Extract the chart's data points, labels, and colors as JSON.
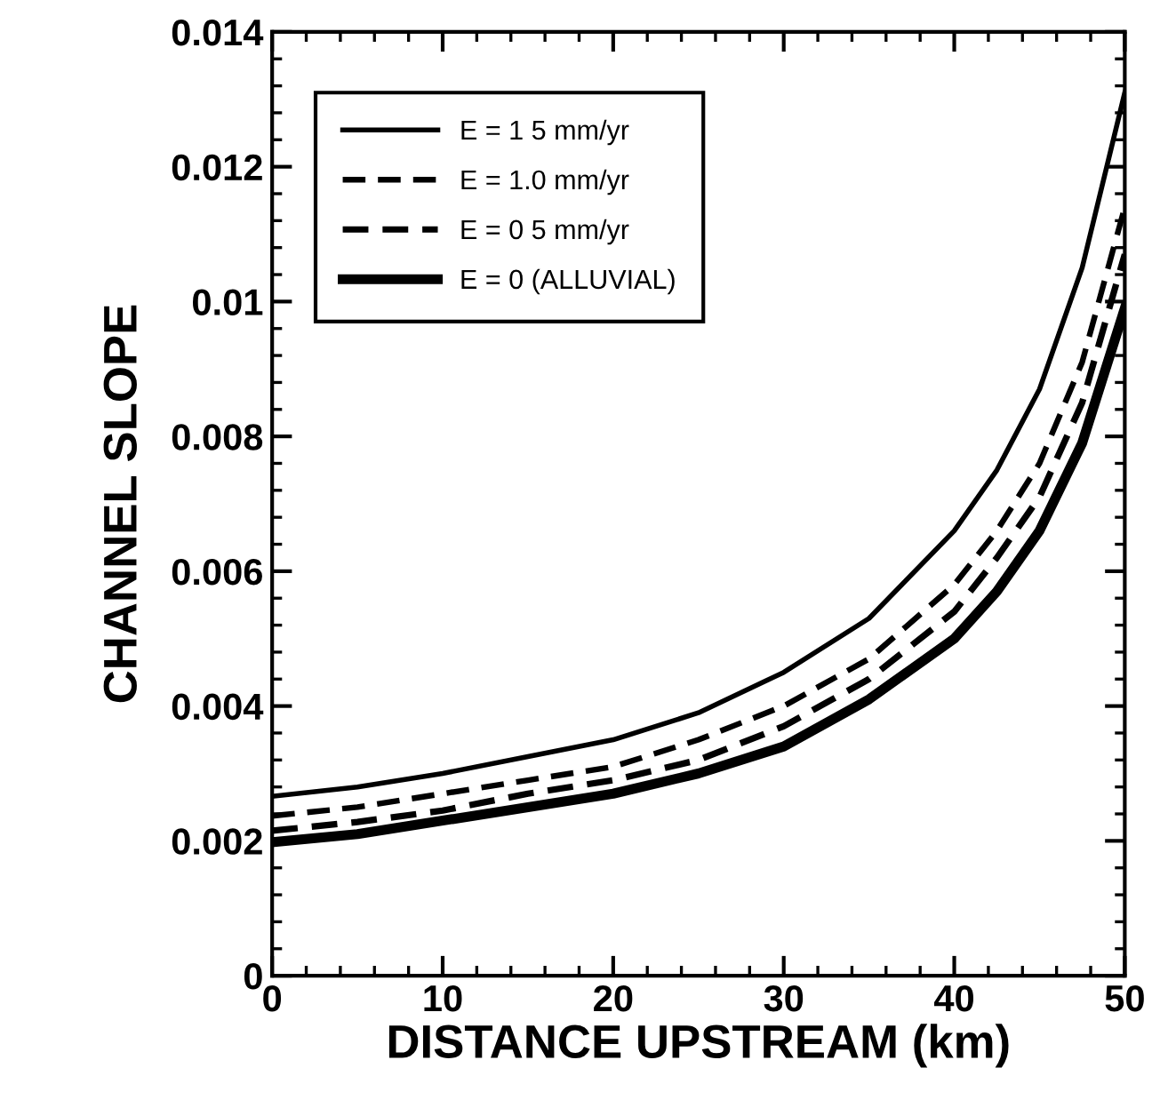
{
  "chart_data": {
    "type": "line",
    "xlabel": "DISTANCE UPSTREAM (km)",
    "ylabel": "CHANNEL SLOPE",
    "x": [
      0,
      5,
      10,
      15,
      20,
      25,
      30,
      35,
      40,
      42.5,
      45,
      47.5,
      50
    ],
    "series": [
      {
        "name": "E = 1 5 mm/yr",
        "color": "#000000",
        "line_style": "solid",
        "values": [
          0.00266,
          0.0028,
          0.003,
          0.00325,
          0.0035,
          0.0039,
          0.0045,
          0.0053,
          0.0066,
          0.0075,
          0.0087,
          0.0105,
          0.0131
        ]
      },
      {
        "name": "E = 1.0 mm/yr",
        "color": "#000000",
        "line_style": "dashed",
        "values": [
          0.00237,
          0.0025,
          0.0027,
          0.0029,
          0.0031,
          0.0035,
          0.004,
          0.0047,
          0.0058,
          0.0066,
          0.0076,
          0.0091,
          0.0114
        ]
      },
      {
        "name": "E = 0 5 mm/yr",
        "color": "#000000",
        "line_style": "dashed",
        "values": [
          0.00215,
          0.00228,
          0.00245,
          0.0027,
          0.0029,
          0.0032,
          0.0037,
          0.0044,
          0.0054,
          0.0062,
          0.0071,
          0.0085,
          0.0107
        ]
      },
      {
        "name": "E = 0 (ALLUVIAL)",
        "color": "#000000",
        "line_style": "solid",
        "values": [
          0.00198,
          0.0021,
          0.0023,
          0.0025,
          0.0027,
          0.003,
          0.0034,
          0.0041,
          0.005,
          0.0057,
          0.0066,
          0.0079,
          0.0099
        ]
      }
    ],
    "xlim": [
      0,
      50
    ],
    "xticks": [
      0,
      10,
      20,
      30,
      40,
      50
    ],
    "ylim": [
      0,
      0.014
    ],
    "yticks": [
      0,
      0.002,
      0.004,
      0.006,
      0.008,
      0.01,
      0.012,
      0.014
    ],
    "grid": false,
    "legend": "top left",
    "marker": "none"
  }
}
